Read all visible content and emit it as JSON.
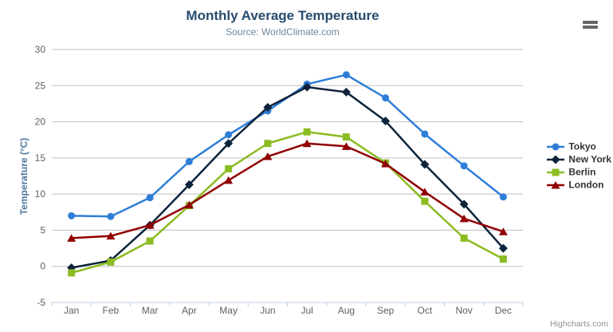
{
  "chart": {
    "title": "Monthly Average Temperature",
    "subtitle": "Source: WorldClimate.com",
    "credit": "Highcharts.com",
    "menu_icon": "hamburger-menu-icon"
  },
  "colors": {
    "title": "#274b6d",
    "subtitle": "#6d869f",
    "axis_title": "#4d759e",
    "axis_labels": "#606060",
    "gridline": "#c0c0c0",
    "axis_line": "#c0d0e0",
    "legend_text": "#333333",
    "credits": "#909090",
    "menu_icon": "#666666"
  },
  "chart_data": {
    "type": "line",
    "title": "Monthly Average Temperature",
    "subtitle": "Source: WorldClimate.com",
    "xlabel": "",
    "ylabel": "Temperature (°C)",
    "categories": [
      "Jan",
      "Feb",
      "Mar",
      "Apr",
      "May",
      "Jun",
      "Jul",
      "Aug",
      "Sep",
      "Oct",
      "Nov",
      "Dec"
    ],
    "ylim": [
      -5,
      30
    ],
    "ytick_interval": 5,
    "ytick_labels": [
      "-5",
      "0",
      "5",
      "10",
      "15",
      "20",
      "25",
      "30"
    ],
    "grid": "horizontal",
    "legend_position": "right",
    "series": [
      {
        "name": "Tokyo",
        "color": "#2f7ed8",
        "marker": "circle",
        "values": [
          7.0,
          6.9,
          9.5,
          14.5,
          18.2,
          21.5,
          25.2,
          26.5,
          23.3,
          18.3,
          13.9,
          9.6
        ]
      },
      {
        "name": "New York",
        "color": "#0d233a",
        "marker": "diamond",
        "values": [
          -0.2,
          0.8,
          5.7,
          11.3,
          17.0,
          22.0,
          24.8,
          24.1,
          20.1,
          14.1,
          8.6,
          2.5
        ]
      },
      {
        "name": "Berlin",
        "color": "#8bbc21",
        "marker": "square",
        "values": [
          -0.9,
          0.6,
          3.5,
          8.4,
          13.5,
          17.0,
          18.6,
          17.9,
          14.3,
          9.0,
          3.9,
          1.0
        ]
      },
      {
        "name": "London",
        "color": "#910000",
        "marker": "triangle",
        "values": [
          3.9,
          4.2,
          5.7,
          8.5,
          11.9,
          15.2,
          17.0,
          16.6,
          14.2,
          10.3,
          6.6,
          4.8
        ]
      }
    ]
  }
}
